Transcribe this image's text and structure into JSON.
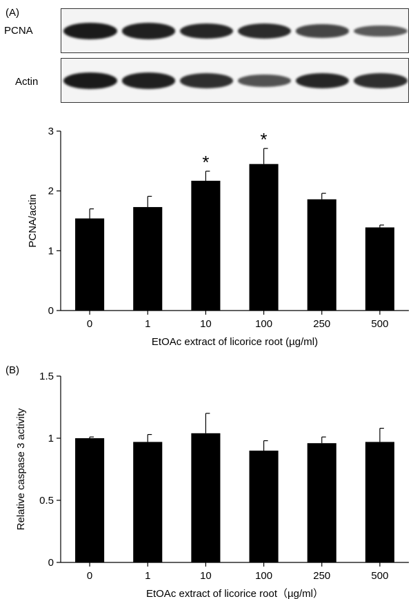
{
  "figure": {
    "panel_a_label": "(A)",
    "panel_b_label": "(B)",
    "blot_pcna_label": "PCNA",
    "blot_actin_label": "Actin"
  },
  "blots": {
    "pcna_band_intensity": [
      1.0,
      0.95,
      0.9,
      0.88,
      0.7,
      0.55
    ],
    "actin_band_intensity": [
      1.0,
      0.95,
      0.85,
      0.6,
      0.9,
      0.85
    ]
  },
  "chart_data": [
    {
      "type": "bar",
      "title": "",
      "categories": [
        "0",
        "1",
        "10",
        "100",
        "250",
        "500"
      ],
      "values": [
        1.54,
        1.73,
        2.17,
        2.45,
        1.86,
        1.39
      ],
      "errors": [
        0.16,
        0.18,
        0.16,
        0.26,
        0.1,
        0.04
      ],
      "annotations": [
        "",
        "",
        "*",
        "*",
        "",
        ""
      ],
      "xlabel": "EtOAc extract of licorice root (µg/ml)",
      "ylabel": "PCNA/actin",
      "ylim": [
        0,
        3
      ],
      "yticks": [
        "0",
        "1",
        "2",
        "3"
      ],
      "bar_color": "#000000",
      "grid": false
    },
    {
      "type": "bar",
      "title": "",
      "categories": [
        "0",
        "1",
        "10",
        "100",
        "250",
        "500"
      ],
      "values": [
        1.0,
        0.97,
        1.04,
        0.9,
        0.96,
        0.97
      ],
      "errors": [
        0.01,
        0.06,
        0.16,
        0.08,
        0.05,
        0.11
      ],
      "annotations": [
        "",
        "",
        "",
        "",
        "",
        ""
      ],
      "xlabel": "EtOAc extract of licorice root（µg/ml）",
      "ylabel": "Relative caspase 3 activity",
      "ylim": [
        0,
        1.5
      ],
      "yticks": [
        "0",
        "0.5",
        "1",
        "1.5"
      ],
      "bar_color": "#000000",
      "grid": false
    }
  ]
}
